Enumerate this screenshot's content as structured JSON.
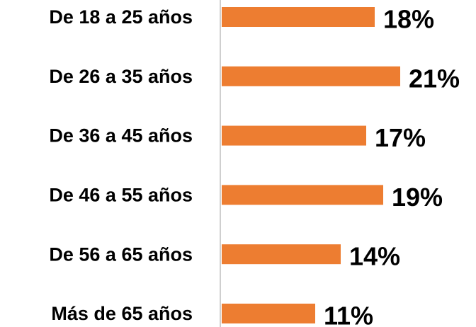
{
  "chart_data": {
    "type": "bar",
    "orientation": "horizontal",
    "categories": [
      "De 18 a 25 años",
      "De 26 a 35 años",
      "De 36 a 45 años",
      "De 46 a 55 años",
      "De 56 a 65 años",
      "Más de 65 años"
    ],
    "values": [
      18,
      21,
      17,
      19,
      14,
      11
    ],
    "value_labels": [
      "18%",
      "21%",
      "17%",
      "19%",
      "14%",
      "11%"
    ],
    "color": "#ED7D31"
  }
}
